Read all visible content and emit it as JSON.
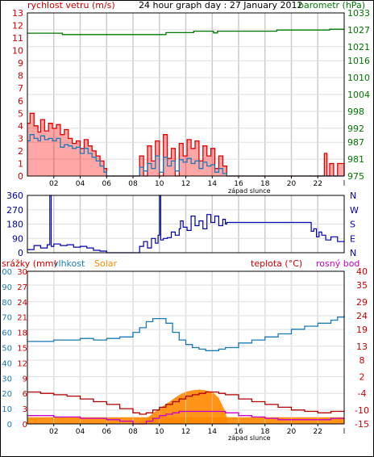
{
  "chart_data": [
    {
      "type": "line",
      "title": "24 hour graph day : 27 January 2012",
      "ylabel_left": "rychlost vetru (m/s)",
      "ylabel_right": "barometr (hPa)",
      "x_tick_labels": [
        "02",
        "04",
        "06",
        "08",
        "10",
        "12",
        "14",
        "16",
        "18",
        "20",
        "22"
      ],
      "x_annotation": "západ slunce",
      "xlim": [
        0,
        24
      ],
      "ylim_left": [
        0,
        13
      ],
      "ylim_right": [
        975,
        1033
      ],
      "y_ticks_left": [
        0,
        1,
        2,
        3,
        4,
        5,
        6,
        7,
        8,
        9,
        10,
        11,
        12,
        13
      ],
      "y_ticks_right": [
        975,
        981,
        987,
        992,
        998,
        1004,
        1010,
        1016,
        1021,
        1027,
        1033
      ],
      "grid": true,
      "colors": {
        "wind_gust": "#e00000",
        "wind_avg": "#1a7bb8",
        "barometer": "#007700",
        "left_axis": "#cc0000",
        "right_axis": "#007700"
      },
      "series": [
        {
          "key": "barometer",
          "axis": "right",
          "x": [
            0,
            2.6,
            2.65,
            10.4,
            10.5,
            12.5,
            12.6,
            14.0,
            14.1,
            14.3,
            14.4,
            18.8,
            18.9,
            22.8,
            22.9,
            24
          ],
          "y": [
            1025.8,
            1025.8,
            1025.3,
            1025.3,
            1026.0,
            1026.0,
            1026.5,
            1026.5,
            1025.9,
            1025.9,
            1026.5,
            1026.5,
            1026.9,
            1026.9,
            1027.2,
            1027.2
          ]
        },
        {
          "key": "wind_gust",
          "axis": "left",
          "x": [
            0,
            0.2,
            0.5,
            0.8,
            1.0,
            1.3,
            1.6,
            1.9,
            2.2,
            2.5,
            2.8,
            3.1,
            3.4,
            3.7,
            4.0,
            4.3,
            4.6,
            4.9,
            5.2,
            5.5,
            5.8,
            6.0,
            8.3,
            8.5,
            8.8,
            9.1,
            9.4,
            9.7,
            10.0,
            10.3,
            10.6,
            10.9,
            11.2,
            11.5,
            11.8,
            12.1,
            12.4,
            12.7,
            13.0,
            13.3,
            13.6,
            13.9,
            14.2,
            14.5,
            14.8,
            15.1,
            22.3,
            22.5,
            22.7,
            22.9,
            23.2,
            23.5,
            24
          ],
          "y": [
            4.2,
            5.0,
            4.0,
            3.5,
            4.5,
            3.6,
            4.2,
            3.8,
            4.1,
            3.3,
            3.7,
            3.0,
            2.6,
            2.8,
            2.2,
            2.9,
            2.4,
            2.0,
            1.6,
            1.2,
            0.6,
            0,
            0,
            1.6,
            0,
            2.4,
            1.2,
            2.8,
            0,
            3.3,
            1.4,
            2.2,
            0,
            2.6,
            1.6,
            2.9,
            2.2,
            2.8,
            1.2,
            2.4,
            1.6,
            2.2,
            0.6,
            1.6,
            0.8,
            0,
            0,
            1.8,
            0,
            1.0,
            0,
            1.0,
            0
          ]
        },
        {
          "key": "wind_avg",
          "axis": "left",
          "x": [
            0,
            0.2,
            0.5,
            0.8,
            1.0,
            1.3,
            1.6,
            1.9,
            2.2,
            2.5,
            2.8,
            3.1,
            3.4,
            3.7,
            4.0,
            4.3,
            4.6,
            4.9,
            5.2,
            5.5,
            5.8,
            6.0,
            8.3,
            8.5,
            8.8,
            9.1,
            9.4,
            9.7,
            10.0,
            10.3,
            10.6,
            10.9,
            11.2,
            11.5,
            11.8,
            12.1,
            12.4,
            12.7,
            13.0,
            13.3,
            13.6,
            13.9,
            14.2,
            14.5,
            14.8,
            15.1,
            24
          ],
          "y": [
            2.8,
            3.3,
            3.0,
            2.8,
            3.2,
            2.9,
            3.0,
            2.8,
            3.0,
            2.3,
            2.5,
            2.4,
            2.2,
            2.3,
            1.8,
            2.2,
            1.8,
            1.5,
            1.2,
            0.8,
            0.3,
            0,
            0,
            0.7,
            0.4,
            1.0,
            0.6,
            1.6,
            0.3,
            1.5,
            0.8,
            1.2,
            0.4,
            1.3,
            1.1,
            1.4,
            1.0,
            1.2,
            0.6,
            1.1,
            0.8,
            0.9,
            0.3,
            0.6,
            0.2,
            0,
            0
          ]
        }
      ]
    },
    {
      "type": "line",
      "xlim": [
        0,
        24
      ],
      "ylim": [
        0,
        360
      ],
      "y_ticks": [
        0,
        90,
        180,
        270,
        360
      ],
      "y_tick_labels_right": [
        "N",
        "E",
        "S",
        "W",
        "N"
      ],
      "grid": true,
      "colors": {
        "direction": "#0000aa",
        "left_axis": "#0000aa",
        "right_axis": "#0000aa"
      },
      "series": [
        {
          "key": "direction",
          "x": [
            0,
            0.5,
            1.0,
            1.5,
            1.7,
            1.8,
            2.0,
            2.5,
            3.0,
            3.5,
            4.0,
            4.5,
            5.0,
            5.5,
            6.0,
            8.2,
            8.5,
            8.8,
            9.1,
            9.4,
            9.7,
            9.9,
            10.0,
            10.1,
            10.3,
            10.6,
            10.9,
            11.2,
            11.5,
            11.6,
            11.8,
            12.1,
            12.4,
            12.7,
            13.0,
            13.3,
            13.6,
            13.9,
            14.2,
            14.5,
            14.8,
            15.0,
            15.1,
            21.3,
            21.5,
            21.7,
            21.9,
            22.1,
            22.3,
            22.6,
            23.0,
            23.5,
            24
          ],
          "y": [
            20,
            45,
            30,
            50,
            360,
            40,
            55,
            45,
            50,
            35,
            40,
            30,
            15,
            10,
            0,
            0,
            40,
            70,
            30,
            90,
            60,
            110,
            360,
            80,
            90,
            95,
            130,
            110,
            150,
            200,
            160,
            140,
            230,
            170,
            200,
            150,
            240,
            190,
            230,
            170,
            210,
            180,
            190,
            190,
            135,
            150,
            100,
            130,
            110,
            80,
            100,
            70,
            75
          ]
        }
      ]
    },
    {
      "type": "line",
      "legend": [
        "srážky (mm)",
        "vlhkost",
        "Solar",
        "teplota (°C)",
        "rosný bod"
      ],
      "x_tick_labels": [
        "02",
        "04",
        "06",
        "08",
        "10",
        "12",
        "14",
        "16",
        "18",
        "20",
        "22"
      ],
      "x_annotation": "západ slunce",
      "xlim": [
        0,
        24
      ],
      "ylim_left": [
        0,
        30
      ],
      "ylim_right": [
        -15,
        40
      ],
      "y_ticks_right": [
        -15,
        -10,
        -4,
        2,
        8,
        13,
        19,
        24,
        29,
        35,
        40
      ],
      "y_tick_labels_left_red": [
        0,
        3,
        6,
        9,
        12,
        15,
        18,
        21,
        24,
        27,
        30
      ],
      "y_tick_labels_left_blue": [
        0,
        10,
        20,
        30,
        40,
        50,
        60,
        70,
        80,
        90,
        100
      ],
      "grid": true,
      "colors": {
        "rain": "#cc0000",
        "humidity": "#1a7bb8",
        "solar": "#ff8800",
        "temperature": "#b00000",
        "dewpoint": "#cc00cc",
        "right_axis": "#cc0000"
      },
      "series": [
        {
          "key": "humidity",
          "axis": "left_blue",
          "x": [
            0,
            1,
            2,
            3,
            4,
            5,
            6,
            7,
            8,
            8.5,
            9,
            9.5,
            10,
            10.5,
            11,
            11.5,
            12,
            12.5,
            13,
            13.5,
            14,
            14.5,
            15,
            16,
            17,
            18,
            19,
            20,
            21,
            22,
            23,
            23.5,
            24
          ],
          "y": [
            54,
            54,
            55,
            55,
            56,
            55,
            56,
            57,
            60,
            63,
            67,
            69,
            69,
            66,
            60,
            55,
            52,
            50,
            49,
            48,
            48,
            49,
            50,
            53,
            55,
            57,
            59,
            62,
            64,
            66,
            68,
            70,
            71
          ]
        },
        {
          "key": "temperature",
          "axis": "right",
          "x": [
            0,
            1,
            2,
            3,
            4,
            5,
            6,
            7,
            8,
            8.5,
            9,
            9.5,
            10,
            10.5,
            11,
            11.5,
            12,
            12.5,
            13,
            13.5,
            14,
            14.5,
            15,
            16,
            17,
            18,
            19,
            20,
            21,
            22,
            23,
            24
          ],
          "y": [
            -3.5,
            -4,
            -4.5,
            -5,
            -6,
            -7,
            -8,
            -9.5,
            -11,
            -11.5,
            -11,
            -10,
            -9,
            -8,
            -7,
            -6,
            -5,
            -4.5,
            -4,
            -3.5,
            -3.5,
            -4,
            -4.5,
            -6,
            -7,
            -8,
            -9,
            -10,
            -10.5,
            -11,
            -10.5,
            -10.5
          ]
        },
        {
          "key": "dewpoint",
          "axis": "right",
          "x": [
            0,
            1,
            2,
            3,
            4,
            5,
            6,
            7,
            8,
            8.5,
            9,
            9.5,
            10,
            10.5,
            11,
            11.5,
            12,
            12.5,
            13,
            13.5,
            14,
            14.5,
            15,
            16,
            17,
            18,
            19,
            20,
            21,
            22,
            23,
            24
          ],
          "y": [
            -12,
            -12,
            -12.5,
            -12.5,
            -13,
            -13,
            -13.5,
            -14,
            -15,
            -15,
            -14,
            -13,
            -12,
            -11.5,
            -11,
            -10.5,
            -10.5,
            -10.5,
            -10.5,
            -10.5,
            -10.5,
            -10.5,
            -11,
            -12,
            -12.5,
            -13,
            -13.5,
            -13.5,
            -13.5,
            -13.5,
            -13,
            -13
          ]
        },
        {
          "key": "solar",
          "axis": "left_blue",
          "fill": true,
          "x": [
            0,
            8.2,
            8.5,
            9,
            9.5,
            10,
            10.5,
            11,
            11.5,
            12,
            12.5,
            13,
            13.5,
            14,
            14.5,
            15,
            15.2,
            24
          ],
          "y": [
            0,
            0,
            1,
            3,
            7,
            10,
            13,
            16,
            19,
            21,
            22,
            22.5,
            22,
            21,
            17,
            8,
            0,
            0
          ]
        },
        {
          "key": "rain_baseline",
          "axis": "left_red",
          "fill": true,
          "x": [
            0,
            24
          ],
          "y": [
            1.3,
            1.3
          ]
        }
      ]
    }
  ]
}
